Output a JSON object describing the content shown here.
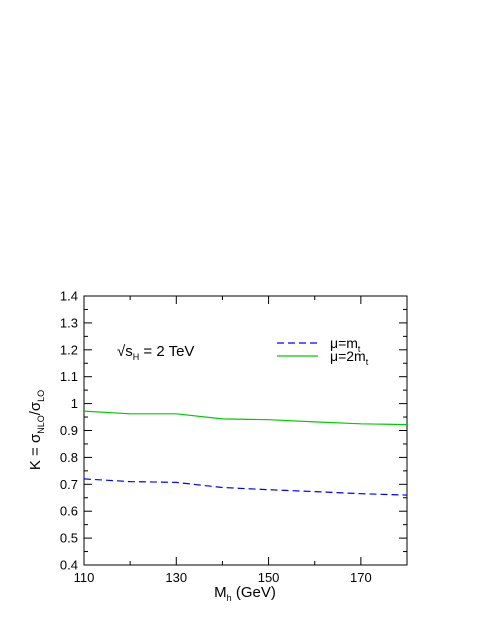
{
  "chart_data": {
    "type": "line",
    "xlabel": {
      "main": "M",
      "sub": "h",
      "rest": " (GeV)"
    },
    "ylabel": {
      "k": "K = σ",
      "sub1": "NLO",
      "slash": "/σ",
      "sub2": "LO"
    },
    "xlim": [
      110,
      180
    ],
    "ylim": [
      0.4,
      1.4
    ],
    "xticks": [
      110,
      130,
      150,
      170
    ],
    "yticks": [
      0.4,
      0.5,
      0.6,
      0.7,
      0.8,
      0.9,
      1.0,
      1.1,
      1.2,
      1.3,
      1.4
    ],
    "ytick_labels": [
      "0.4",
      "0.5",
      "0.6",
      "0.7",
      "0.8",
      "0.9",
      "1",
      "1.1",
      "1.2",
      "1.3",
      "1.4"
    ],
    "annotation": {
      "root": "√s",
      "sub": "H",
      "rest": " = 2 TeV"
    },
    "legend_position": "top-right",
    "series": [
      {
        "legend_main": "μ=m",
        "legend_sub": "t",
        "color": "#0000ff",
        "dash": "dashed",
        "x": [
          110,
          120,
          130,
          140,
          150,
          160,
          170,
          180
        ],
        "y": [
          0.72,
          0.71,
          0.707,
          0.688,
          0.68,
          0.673,
          0.665,
          0.66
        ]
      },
      {
        "legend_main": "μ=2m",
        "legend_sub": "t",
        "color": "#00cc00",
        "dash": "solid",
        "x": [
          110,
          120,
          130,
          140,
          150,
          160,
          170,
          180
        ],
        "y": [
          0.972,
          0.962,
          0.962,
          0.943,
          0.94,
          0.932,
          0.925,
          0.922
        ]
      }
    ]
  }
}
